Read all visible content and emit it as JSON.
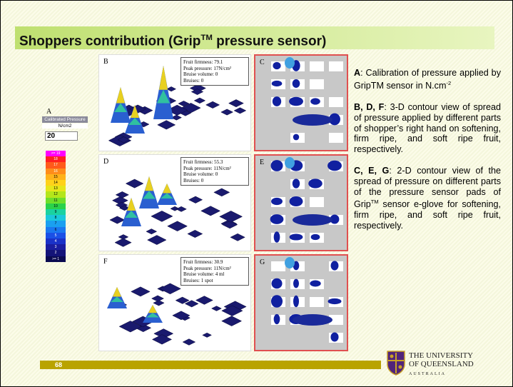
{
  "title": [
    {
      "text": "Shoppers contribution (Grip"
    },
    {
      "text": "TM",
      "style": "sup"
    },
    {
      "text": " pressure sensor)"
    }
  ],
  "legend_panel": {
    "letter": "A",
    "heading": "Calibrated Pressure",
    "unit": "N/cm2",
    "input": "20",
    "scale": [
      ">= 19",
      "18",
      "17",
      "16",
      "15",
      "14",
      "13",
      "12",
      "11",
      "10",
      "9",
      "8",
      "7",
      "6",
      "5",
      "4",
      "3",
      "2",
      ">= 1"
    ],
    "colors": [
      "#ff00ff",
      "#ff2020",
      "#ff5a1a",
      "#ff8c1a",
      "#ffb21a",
      "#ffd21a",
      "#e6e61a",
      "#b4e61a",
      "#6ede2a",
      "#2ad24a",
      "#1ad2a0",
      "#1ac8dc",
      "#1aa0f0",
      "#1a78f0",
      "#1a50e6",
      "#1a32c8",
      "#1a1ea0",
      "#141478",
      "#0a0a50"
    ]
  },
  "panels": [
    {
      "letter": "B",
      "info": [
        "Fruit firmness: 79.1",
        "Peak pressure: 17N/cm²",
        "Bruise volume: 0",
        "Bruises: 0"
      ]
    },
    {
      "letter": "C"
    },
    {
      "letter": "D",
      "info": [
        "Fruit firmness: 55.3",
        "Peak pressure: 11N/cm²",
        "Bruise volume: 0",
        "Bruises: 0"
      ]
    },
    {
      "letter": "E"
    },
    {
      "letter": "F",
      "info": [
        "Fruit firmness: 30.9",
        "Peak pressure: 11N/cm²",
        "Bruise volume: 4 ml",
        "Bruises: 1 spot"
      ]
    },
    {
      "letter": "G"
    }
  ],
  "notes": [
    [
      {
        "text": "A",
        "style": "bold"
      },
      {
        "text": ": Calibration of pressure applied by GripTM sensor in N.cm"
      },
      {
        "text": "-2",
        "style": "sup"
      }
    ],
    [
      {
        "text": "B, D, F",
        "style": "bold"
      },
      {
        "text": ": 3-D contour view of spread of pressure applied by different parts of shopper’s right hand on softening, firm ripe, and soft ripe fruit, respectively."
      }
    ],
    [
      {
        "text": "C, E, G",
        "style": "bold"
      },
      {
        "text": ": 2-D contour view of the spread of pressure on different parts of the pressure sensor pads of Grip"
      },
      {
        "text": "TM",
        "style": "sup"
      },
      {
        "text": " sensor e-glove for softening, firm ripe, and soft ripe fruit, respectively."
      }
    ]
  ],
  "footer": {
    "page": "68",
    "logo": [
      "THE UNIVERSITY",
      "OF QUEENSLAND",
      "AUSTRALIA"
    ]
  }
}
